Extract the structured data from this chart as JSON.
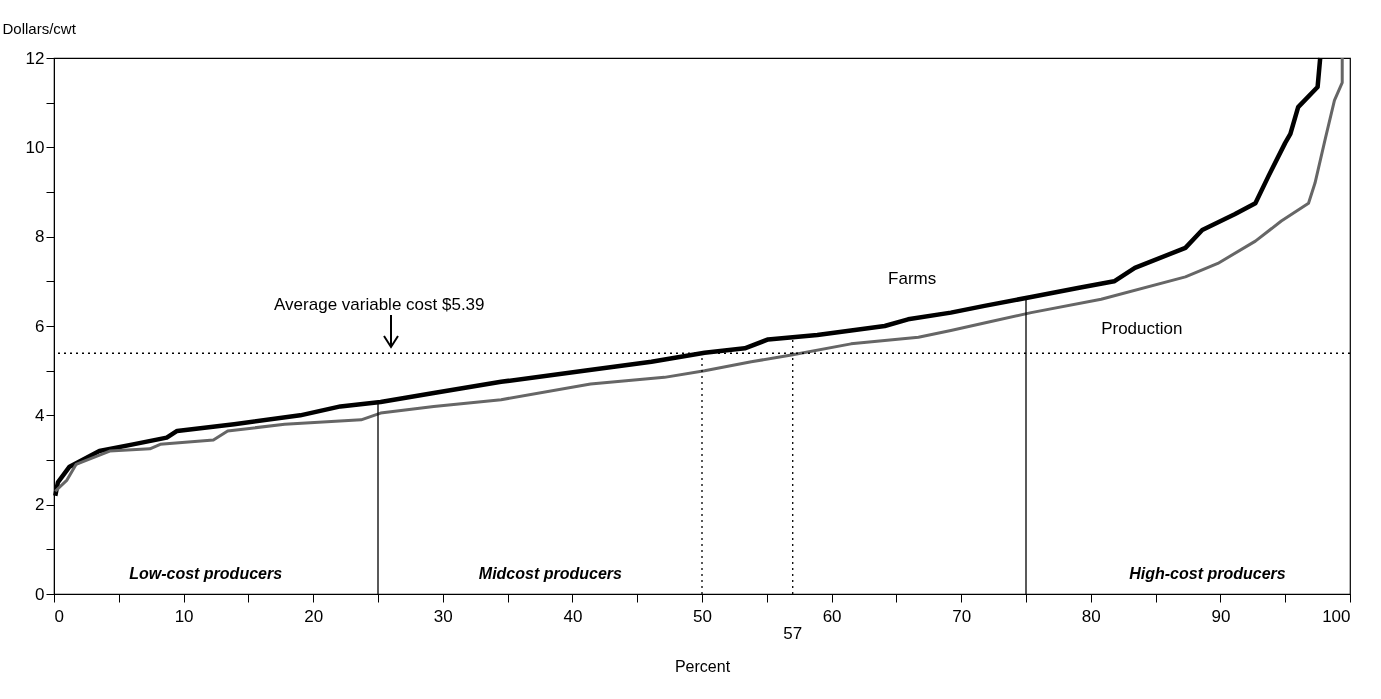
{
  "chart_data": {
    "type": "line",
    "xlabel": "Percent",
    "ylabel": "Dollars/cwt",
    "xlim": [
      0,
      100
    ],
    "ylim": [
      0,
      12
    ],
    "xticks": [
      0,
      {
        "value": 5,
        "label": null
      },
      10,
      {
        "value": 15,
        "label": null
      },
      20,
      {
        "value": 25,
        "label": null
      },
      30,
      {
        "value": 35,
        "label": null
      },
      40,
      {
        "value": 45,
        "label": null
      },
      50,
      {
        "value": 55,
        "label": null
      },
      60,
      {
        "value": 65,
        "label": null
      },
      70,
      {
        "value": 75,
        "label": null
      },
      80,
      {
        "value": 85,
        "label": null
      },
      90,
      {
        "value": 95,
        "label": null
      },
      100
    ],
    "yticks": [
      0,
      {
        "value": 1,
        "label": null
      },
      2,
      {
        "value": 3,
        "label": null
      },
      4,
      {
        "value": 5,
        "label": null
      },
      6,
      {
        "value": 7,
        "label": null
      },
      8,
      {
        "value": 9,
        "label": null
      },
      10,
      {
        "value": 11,
        "label": null
      },
      12
    ],
    "grid": false,
    "marker": "none",
    "line_style": "solid",
    "series": [
      {
        "name": "Farms",
        "color": "#000000",
        "x": [
          0.1,
          0.3,
          1.2,
          3.5,
          6.1,
          8.7,
          9.5,
          13.9,
          19.0,
          22.1,
          25.2,
          29.3,
          34.5,
          40.9,
          46.1,
          50.2,
          53.3,
          55.1,
          58.9,
          64.1,
          65.9,
          69.2,
          71.8,
          75.4,
          79.0,
          81.8,
          83.4,
          87.3,
          88.6,
          91.1,
          92.7,
          93.7,
          95.0,
          95.4,
          96.0,
          97.5,
          97.7
        ],
        "values": [
          2.2,
          2.5,
          2.85,
          3.2,
          3.35,
          3.5,
          3.65,
          3.8,
          4.0,
          4.2,
          4.3,
          4.5,
          4.75,
          5.0,
          5.2,
          5.4,
          5.5,
          5.7,
          5.8,
          6.0,
          6.15,
          6.3,
          6.45,
          6.65,
          6.85,
          7.0,
          7.3,
          7.75,
          8.15,
          8.5,
          8.75,
          9.35,
          10.1,
          10.3,
          10.9,
          11.35,
          12
        ]
      },
      {
        "name": "Production",
        "color": "#666666",
        "x": [
          0.1,
          1.0,
          1.7,
          4.3,
          7.4,
          8.2,
          12.3,
          13.4,
          17.8,
          23.7,
          25.2,
          29.3,
          34.5,
          41.4,
          47.1,
          50.2,
          53.8,
          56.9,
          61.5,
          66.7,
          69.2,
          72.3,
          75.4,
          80.8,
          87.3,
          89.8,
          92.7,
          94.7,
          96.8,
          97.3,
          98.1,
          98.8,
          99.4,
          99.4
        ],
        "values": [
          2.3,
          2.55,
          2.9,
          3.2,
          3.25,
          3.35,
          3.45,
          3.65,
          3.8,
          3.9,
          4.05,
          4.2,
          4.35,
          4.7,
          4.85,
          5.0,
          5.2,
          5.35,
          5.6,
          5.75,
          5.9,
          6.1,
          6.3,
          6.6,
          7.1,
          7.4,
          7.9,
          8.35,
          8.75,
          9.2,
          10.2,
          11.05,
          11.45,
          12
        ]
      }
    ],
    "ref_lines": [
      {
        "axis": "y",
        "value": 5.39,
        "label": "Average variable cost $5.39",
        "line_style": "dotted",
        "color": "#000000"
      },
      {
        "axis": "x",
        "value": 25,
        "line_style": "solid",
        "color": "#000000"
      },
      {
        "axis": "x",
        "value": 75,
        "line_style": "solid",
        "color": "#000000"
      },
      {
        "axis": "x",
        "value": 50,
        "line_style": "dotted",
        "color": "#000000"
      },
      {
        "axis": "x",
        "value": 57,
        "label": "57",
        "line_style": "dotted",
        "color": "#000000"
      }
    ],
    "annotations": [
      "Low-cost producers",
      "Midcost producers",
      "High-cost producers"
    ]
  }
}
